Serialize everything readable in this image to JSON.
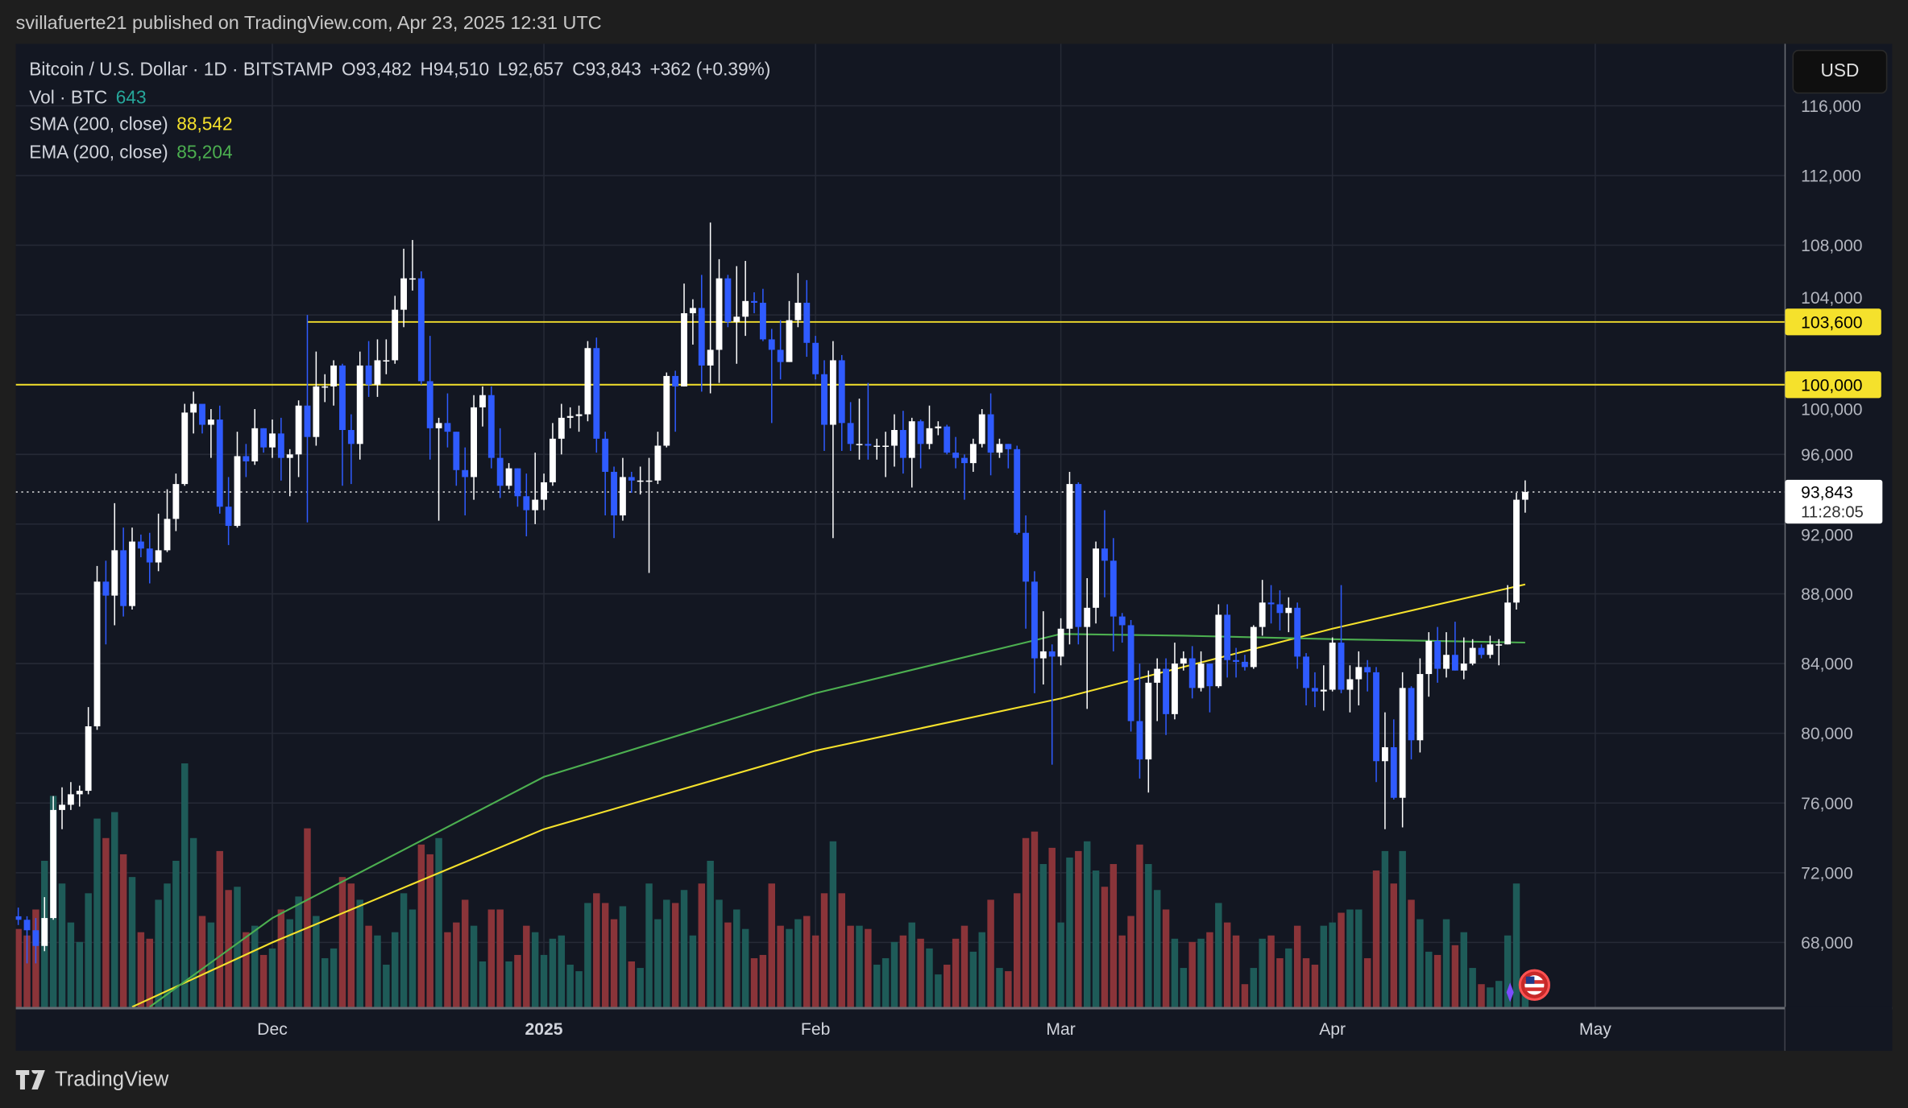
{
  "header": {
    "published": "svillafuerte21 published on TradingView.com, Apr 23, 2025 12:31 UTC"
  },
  "legend": {
    "symbol": "Bitcoin / U.S. Dollar · 1D · BITSTAMP",
    "open": "O93,482",
    "high": "H94,510",
    "low": "L92,657",
    "close": "C93,843",
    "change": "+362 (+0.39%)",
    "vol_label": "Vol · BTC",
    "vol_value": "643",
    "sma_label": "SMA (200, close)",
    "sma_value": "88,542",
    "ema_label": "EMA (200, close)",
    "ema_value": "85,204"
  },
  "price_axis": {
    "currency": "USD",
    "last_price": "93,843",
    "countdown": "11:28:05"
  },
  "footer": {
    "brand": "TradingView"
  },
  "colors": {
    "up_candle": "#ffffff",
    "down_candle": "#2f5bff",
    "vol_up": "#1e5b58",
    "vol_down": "#8a3439",
    "sma": "#f5e12c",
    "ema": "#4caf50",
    "level_line": "#f5e12c",
    "pane_bg": "#131722",
    "grid": "#262a36",
    "vol_value": "#26a69a"
  },
  "chart_data": {
    "type": "candlestick",
    "interval": "1D",
    "first_date": "2024-11-02",
    "last_date": "2025-04-23",
    "ylim": [
      64300,
      119000
    ],
    "y_ticks": [
      68000,
      72000,
      76000,
      80000,
      84000,
      88000,
      92000,
      96000,
      100000,
      104000,
      108000,
      112000,
      116000
    ],
    "y_tick_labels": [
      "68,000",
      "72,000",
      "76,000",
      "80,000",
      "84,000",
      "88,000",
      "92,000",
      "96,000",
      "100,000",
      "104,000",
      "108,000",
      "112,000",
      "116,000"
    ],
    "x_ticks": [
      {
        "date": "2024-12-01",
        "label": "Dec"
      },
      {
        "date": "2025-01-01",
        "label": "2025"
      },
      {
        "date": "2025-02-01",
        "label": "Feb"
      },
      {
        "date": "2025-03-01",
        "label": "Mar"
      },
      {
        "date": "2025-04-01",
        "label": "Apr"
      },
      {
        "date": "2025-05-01",
        "label": "May"
      }
    ],
    "grid": true,
    "first_open": 69500,
    "close": [
      69300,
      68700,
      67800,
      69400,
      75600,
      75900,
      76500,
      76700,
      80400,
      88700,
      87900,
      90500,
      87300,
      91000,
      90600,
      89800,
      90500,
      92300,
      94300,
      98400,
      98900,
      97700,
      98000,
      93000,
      91900,
      95900,
      95600,
      97500,
      96400,
      97200,
      95800,
      96000,
      98800,
      97000,
      99900,
      99900,
      101100,
      97400,
      96600,
      101100,
      100000,
      101400,
      101400,
      104300,
      106100,
      106100,
      100200,
      97500,
      97800,
      97300,
      95100,
      94700,
      98700,
      99400,
      95800,
      94200,
      95200,
      93600,
      92800,
      93400,
      94400,
      96900,
      98100,
      98200,
      98300,
      102100,
      96900,
      95000,
      92500,
      94700,
      94500,
      94500,
      94500,
      96500,
      100500,
      99900,
      104100,
      104400,
      101100,
      102000,
      106100,
      103600,
      103900,
      104800,
      104700,
      102600,
      102000,
      101300,
      103700,
      104700,
      102400,
      100600,
      97700,
      101400,
      97800,
      96600,
      96600,
      96500,
      96500,
      96500,
      97400,
      95800,
      97900,
      96600,
      97500,
      97600,
      96100,
      95800,
      95500,
      96600,
      98300,
      96100,
      96600,
      96300,
      91500,
      88700,
      84300,
      84700,
      84400,
      86000,
      94300,
      86100,
      87200,
      90600,
      89900,
      86700,
      86200,
      80700,
      78500,
      82900,
      83700,
      81100,
      84000,
      84300,
      82600,
      84000,
      82700,
      86800,
      84200,
      84100,
      83800,
      86100,
      87500,
      87400,
      86900,
      87200,
      84400,
      82600,
      82400,
      82500,
      85200,
      82500,
      83100,
      83800,
      83500,
      78400,
      79200,
      76300,
      82600,
      79600,
      83400,
      85300,
      83700,
      84500,
      83600,
      84000,
      84900,
      84500,
      85100,
      85100,
      87500,
      93400,
      93843
    ],
    "high": [
      70000,
      69500,
      69400,
      70600,
      76400,
      76900,
      77200,
      77000,
      81500,
      89600,
      89900,
      93200,
      91800,
      91800,
      91400,
      91500,
      92600,
      94000,
      94900,
      98900,
      99600,
      98800,
      98600,
      98800,
      94700,
      97300,
      96600,
      98600,
      97500,
      98000,
      98100,
      96300,
      99100,
      104000,
      101900,
      100600,
      101400,
      101200,
      98300,
      101900,
      102500,
      102600,
      102600,
      105100,
      107800,
      108300,
      106500,
      102800,
      98100,
      99500,
      97300,
      96400,
      99400,
      99900,
      99900,
      97500,
      95500,
      95200,
      94900,
      96100,
      94900,
      97800,
      98900,
      98700,
      98800,
      102500,
      102700,
      97300,
      95300,
      95800,
      95000,
      95300,
      95800,
      97300,
      100700,
      100800,
      105800,
      104900,
      106300,
      109300,
      107200,
      106300,
      106800,
      107100,
      105300,
      105500,
      103200,
      103700,
      104800,
      106400,
      106000,
      102800,
      101400,
      102500,
      101700,
      99000,
      99200,
      100100,
      96900,
      97300,
      98300,
      98500,
      98100,
      98000,
      98800,
      97900,
      97700,
      97000,
      96000,
      96900,
      98600,
      99500,
      96900,
      96600,
      96500,
      92500,
      89300,
      87000,
      85100,
      86600,
      95000,
      94400,
      88900,
      91000,
      92800,
      91200,
      86900,
      86500,
      84000,
      83600,
      84300,
      84300,
      85200,
      84700,
      85000,
      84700,
      84000,
      87400,
      87400,
      84900,
      84500,
      86200,
      88800,
      88500,
      88200,
      87800,
      87500,
      84600,
      83500,
      83900,
      85500,
      88500,
      83900,
      84700,
      84200,
      83800,
      81200,
      80800,
      83500,
      82700,
      84300,
      85800,
      86100,
      85800,
      86400,
      85500,
      85400,
      85100,
      85600,
      85400,
      88500,
      93800,
      94510
    ],
    "low": [
      69000,
      66800,
      66800,
      67500,
      69300,
      74500,
      75600,
      75800,
      76500,
      80200,
      85100,
      86200,
      86700,
      87100,
      90100,
      88600,
      89300,
      90400,
      91600,
      94200,
      97200,
      97200,
      95800,
      92600,
      90800,
      91800,
      94700,
      95400,
      96100,
      95800,
      94500,
      93600,
      94700,
      92100,
      96500,
      99000,
      98800,
      94200,
      94300,
      95700,
      99300,
      99300,
      100600,
      101200,
      103300,
      105400,
      100000,
      95700,
      92200,
      96400,
      94200,
      92500,
      93400,
      97600,
      95200,
      93500,
      94000,
      93000,
      91300,
      92000,
      92800,
      94200,
      96000,
      97500,
      97300,
      97900,
      96100,
      92500,
      91200,
      92200,
      93800,
      93700,
      89200,
      94300,
      96400,
      97300,
      99900,
      102300,
      99600,
      99500,
      100100,
      103300,
      101200,
      102800,
      104100,
      102500,
      97800,
      100300,
      101300,
      103300,
      101600,
      100300,
      96200,
      91200,
      96200,
      96200,
      95700,
      95700,
      95700,
      94700,
      95300,
      94900,
      94100,
      95200,
      96300,
      97100,
      96000,
      95200,
      93400,
      95000,
      96400,
      94800,
      95800,
      95200,
      91400,
      86000,
      82300,
      82800,
      78200,
      83900,
      85100,
      85100,
      81400,
      86300,
      87800,
      84700,
      85200,
      80100,
      77400,
      76600,
      80700,
      79900,
      80800,
      83600,
      82000,
      82400,
      81200,
      82600,
      83200,
      83200,
      83600,
      83700,
      85600,
      86300,
      85900,
      85800,
      83700,
      81600,
      81500,
      81300,
      82400,
      82300,
      81200,
      81600,
      82400,
      77200,
      74500,
      76200,
      74600,
      78500,
      78900,
      82100,
      82900,
      83200,
      83600,
      83100,
      83900,
      84300,
      84300,
      83900,
      85100,
      87100,
      92657
    ],
    "volume": [
      2400,
      2200,
      3000,
      4500,
      6500,
      3800,
      2600,
      2000,
      3500,
      5800,
      5200,
      6000,
      4700,
      4000,
      2300,
      2100,
      3300,
      3800,
      4500,
      7500,
      5200,
      2800,
      2600,
      4800,
      3600,
      3700,
      2300,
      2500,
      1600,
      1800,
      3000,
      2700,
      3400,
      5500,
      2800,
      1500,
      1800,
      4000,
      3800,
      3300,
      2500,
      2200,
      1300,
      2300,
      3500,
      3000,
      5000,
      4700,
      5200,
      2300,
      2600,
      3300,
      2500,
      1400,
      3000,
      3000,
      1400,
      1600,
      2500,
      2300,
      1600,
      2100,
      2200,
      1300,
      1100,
      3200,
      3500,
      3200,
      2700,
      3100,
      1400,
      1200,
      3800,
      2700,
      3300,
      3200,
      3600,
      2200,
      3800,
      4500,
      3300,
      2600,
      3000,
      2400,
      1500,
      1600,
      3800,
      2500,
      2400,
      2700,
      2800,
      2200,
      3500,
      5100,
      3500,
      2500,
      2500,
      2400,
      1300,
      1500,
      2000,
      2200,
      2600,
      2100,
      1800,
      1000,
      1300,
      2100,
      2500,
      1700,
      2300,
      3300,
      1200,
      1100,
      3500,
      5200,
      5400,
      4400,
      4900,
      2600,
      4600,
      4800,
      5100,
      4200,
      3700,
      4400,
      2200,
      2800,
      5000,
      4400,
      3600,
      3000,
      2100,
      1200,
      2000,
      2100,
      2300,
      3200,
      2600,
      2200,
      700,
      1200,
      2100,
      2200,
      1500,
      1800,
      2500,
      1500,
      1300,
      2500,
      2600,
      2900,
      3000,
      3000,
      1500,
      4200,
      4800,
      3800,
      4800,
      3300,
      2700,
      1700,
      1600,
      2700,
      1900,
      2300,
      1200,
      700,
      600,
      800,
      2200,
      3800,
      643
    ],
    "sma_200": [
      [
        "2024-11-15",
        64300
      ],
      [
        "2024-12-01",
        68000
      ],
      [
        "2025-01-01",
        74500
      ],
      [
        "2025-02-01",
        79000
      ],
      [
        "2025-03-01",
        82000
      ],
      [
        "2025-04-01",
        86000
      ],
      [
        "2025-04-23",
        88542
      ]
    ],
    "ema_200": [
      [
        "2024-11-17",
        64300
      ],
      [
        "2024-12-01",
        69400
      ],
      [
        "2025-01-01",
        77500
      ],
      [
        "2025-02-01",
        82300
      ],
      [
        "2025-03-01",
        85700
      ],
      [
        "2025-03-15",
        85600
      ],
      [
        "2025-04-01",
        85400
      ],
      [
        "2025-04-23",
        85204
      ]
    ],
    "levels": [
      {
        "value": 103600,
        "label": "103,600",
        "from_date": "2024-12-05"
      },
      {
        "value": 100000,
        "label": "100,000"
      }
    ]
  }
}
